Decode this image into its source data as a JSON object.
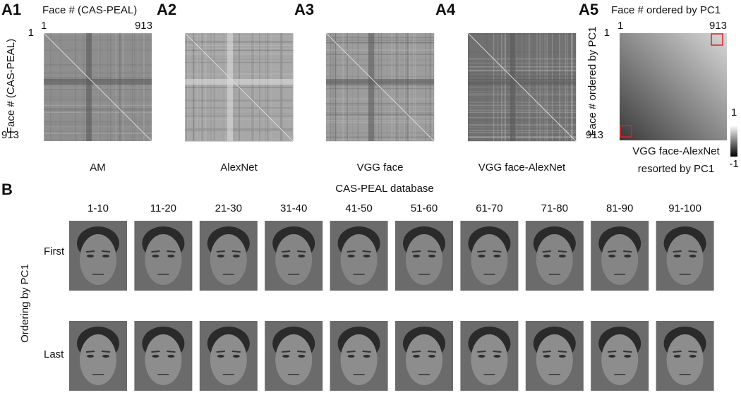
{
  "panels": [
    {
      "label": "A1",
      "caption": "AM"
    },
    {
      "label": "A2",
      "caption": "AlexNet"
    },
    {
      "label": "A3",
      "caption": "VGG face"
    },
    {
      "label": "A4",
      "caption": "VGG face-AlexNet"
    }
  ],
  "axis_a1": {
    "title": "Face # (CAS-PEAL)",
    "start": "1",
    "end": "913"
  },
  "panel_a5": {
    "label": "A5",
    "title": "Face # ordered by PC1",
    "side_title": "Face # ordered by PC1",
    "start": "1",
    "end": "913",
    "caption": [
      "VGG face-AlexNet",
      "resorted by PC1"
    ],
    "colorbar": {
      "max": "1",
      "min": "-1"
    }
  },
  "panel_b": {
    "label": "B",
    "title": "CAS-PEAL database",
    "columns": [
      "1-10",
      "11-20",
      "21-30",
      "31-40",
      "41-50",
      "51-60",
      "61-70",
      "71-80",
      "81-90",
      "91-100"
    ],
    "rows": [
      "First",
      "Last"
    ],
    "side_title": "Ordering by PC1"
  }
}
